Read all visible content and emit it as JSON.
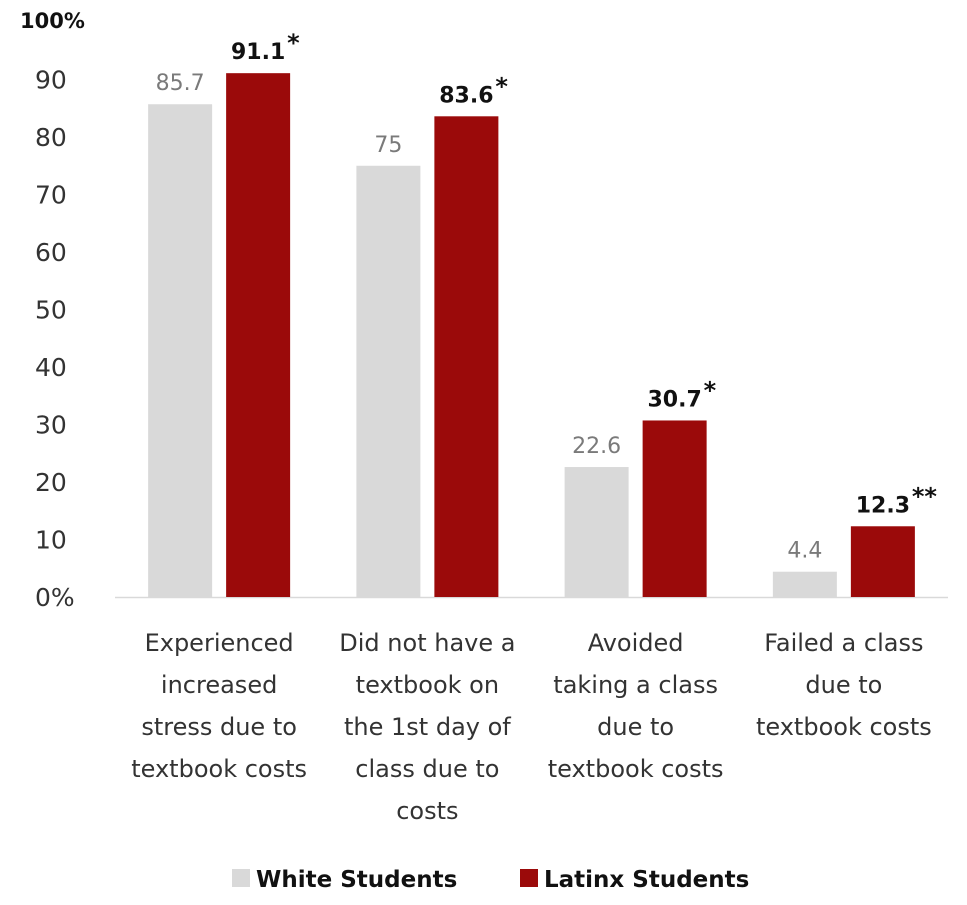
{
  "chart_data": {
    "type": "bar",
    "categories": [
      [
        "Experienced",
        "increased",
        "stress due to",
        "textbook costs"
      ],
      [
        "Did not have a",
        "textbook on",
        "the 1st day of",
        "class due to",
        "costs"
      ],
      [
        "Avoided",
        "taking a class",
        "due to",
        "textbook costs"
      ],
      [
        "Failed a class",
        "due to",
        "textbook costs"
      ]
    ],
    "series": [
      {
        "name": "White Students",
        "values": [
          85.7,
          75,
          22.6,
          4.4
        ],
        "labels": [
          "85.7",
          "75",
          "22.6",
          "4.4"
        ],
        "color": "#d9d9d9"
      },
      {
        "name": "Latinx Students",
        "values": [
          91.1,
          83.6,
          30.7,
          12.3
        ],
        "labels": [
          "91.1",
          "83.6",
          "30.7",
          "12.3"
        ],
        "color": "#9b0a0a",
        "significance": [
          "*",
          "*",
          "*",
          "**"
        ]
      }
    ],
    "yticks": [
      "0%",
      "10",
      "20",
      "30",
      "40",
      "50",
      "60",
      "70",
      "80",
      "90",
      "100%"
    ],
    "ylim": [
      0,
      100
    ],
    "grid": false,
    "legend": "bottom",
    "title": "",
    "xlabel": "",
    "ylabel": ""
  }
}
